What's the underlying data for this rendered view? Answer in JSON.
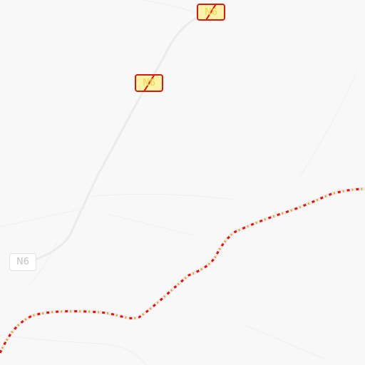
{
  "map": {
    "background_color": "#f8f8f8",
    "road_color": "#ececec",
    "closure_dash_colors": [
      "#e01010",
      "#f0a020"
    ],
    "shields": [
      {
        "label": "N6",
        "status": "closed",
        "icon": "road-closed-shield"
      },
      {
        "label": "N6",
        "status": "closed",
        "icon": "road-closed-shield"
      },
      {
        "label": "N6",
        "status": "normal",
        "icon": "route-shield"
      }
    ]
  }
}
